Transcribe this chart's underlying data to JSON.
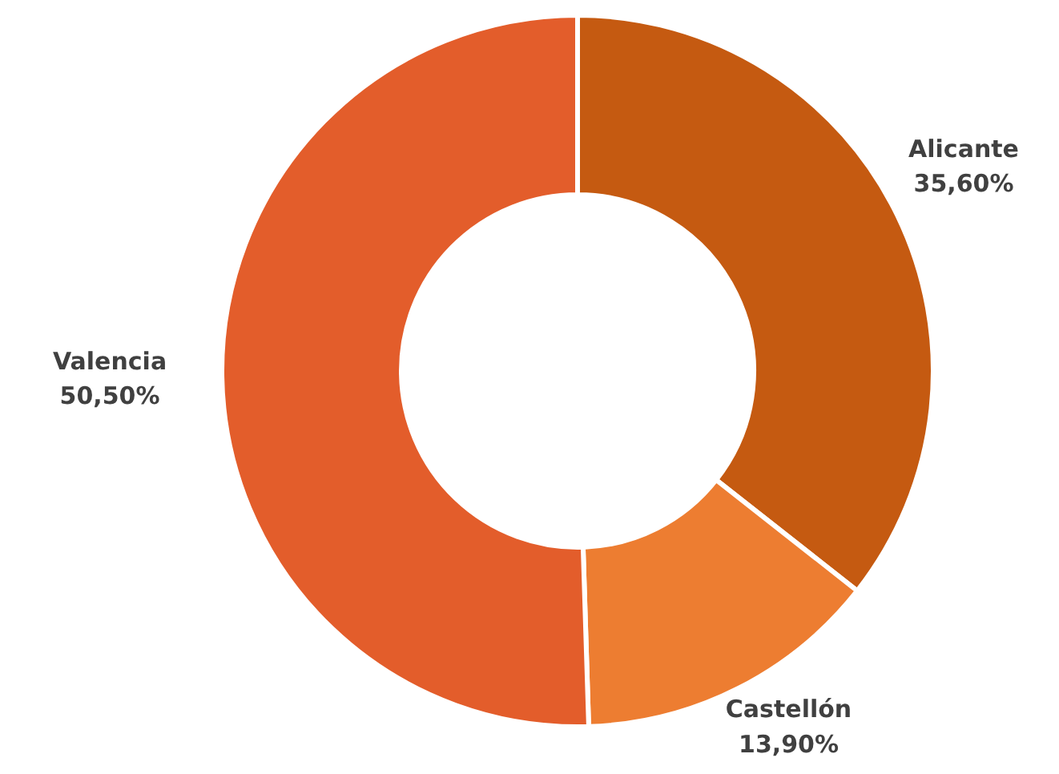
{
  "chart_data": {
    "type": "donut",
    "categories": [
      "Alicante",
      "Castellón",
      "Valencia"
    ],
    "values": [
      35.6,
      13.9,
      50.5
    ],
    "colors": [
      "#c55a11",
      "#ed7d31",
      "#e35d2b"
    ],
    "value_labels": [
      "35,60%",
      "13,90%",
      "50,50%"
    ]
  }
}
